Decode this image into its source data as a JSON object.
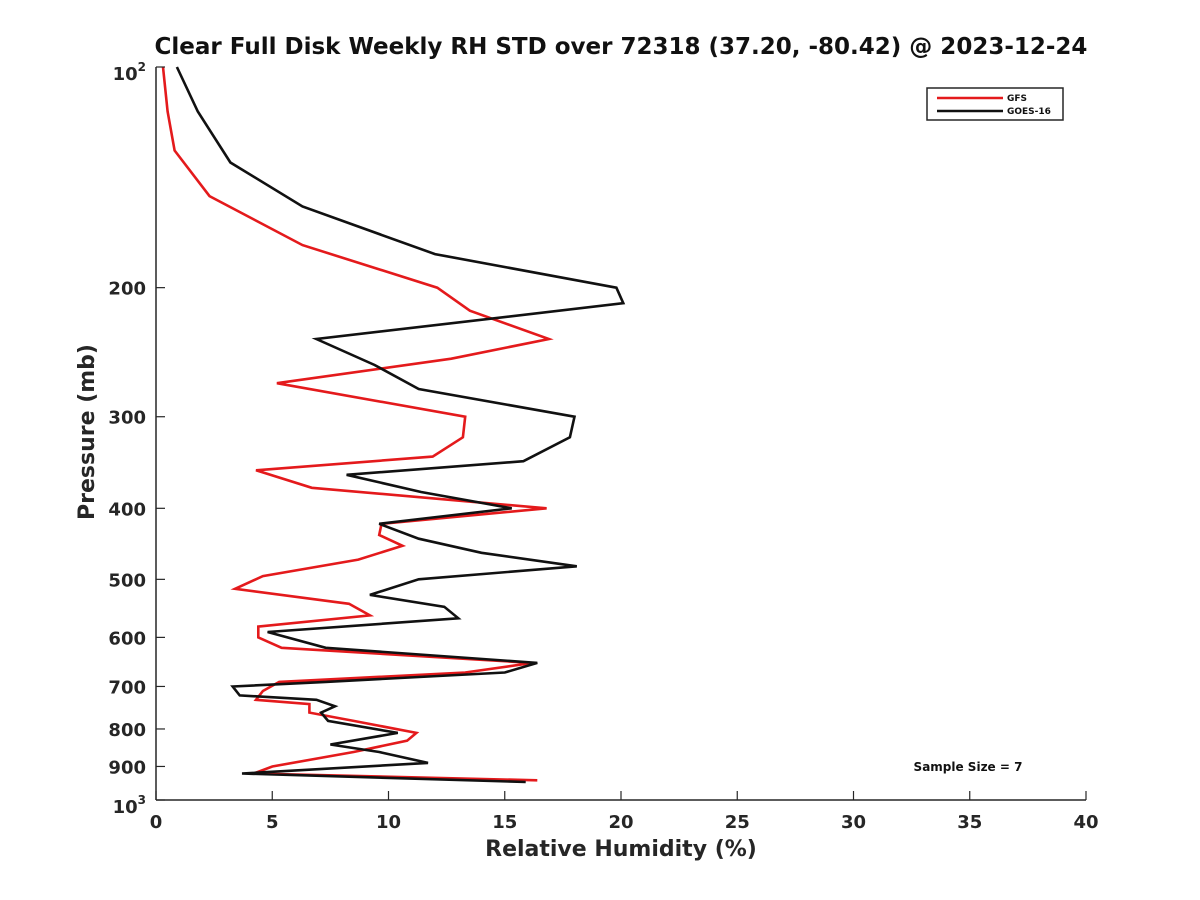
{
  "chart_data": {
    "type": "line",
    "title": "Clear Full Disk Weekly RH STD over 72318 (37.20, -80.42) @ 2023-12-24",
    "xlabel": "Relative Humidity (%)",
    "ylabel": "Pressure (mb)",
    "xlim": [
      0,
      40
    ],
    "ylim": [
      100,
      1000
    ],
    "yscale": "log",
    "yreversed": true,
    "grid": false,
    "legend_position": "top-right",
    "x_ticks": [
      "0",
      "5",
      "10",
      "15",
      "20",
      "25",
      "30",
      "35",
      "40"
    ],
    "y_ticks": [
      {
        "value": 100,
        "base": "10",
        "exp": "2"
      },
      {
        "value": 200,
        "label": "200"
      },
      {
        "value": 300,
        "label": "300"
      },
      {
        "value": 400,
        "label": "400"
      },
      {
        "value": 500,
        "label": "500"
      },
      {
        "value": 600,
        "label": "600"
      },
      {
        "value": 700,
        "label": "700"
      },
      {
        "value": 800,
        "label": "800"
      },
      {
        "value": 900,
        "label": "900"
      },
      {
        "value": 1000,
        "base": "10",
        "exp": "3"
      }
    ],
    "annotation": "Sample Size = 7",
    "series": [
      {
        "name": "GFS",
        "color": "#e41a1c",
        "points": [
          [
            0.3,
            100
          ],
          [
            0.5,
            115
          ],
          [
            0.8,
            130
          ],
          [
            2.3,
            150
          ],
          [
            6.3,
            175
          ],
          [
            12.1,
            200
          ],
          [
            13.5,
            215
          ],
          [
            16.9,
            235
          ],
          [
            12.7,
            250
          ],
          [
            5.2,
            270
          ],
          [
            13.3,
            300
          ],
          [
            13.2,
            320
          ],
          [
            11.9,
            340
          ],
          [
            4.3,
            355
          ],
          [
            6.7,
            375
          ],
          [
            16.8,
            400
          ],
          [
            9.7,
            420
          ],
          [
            9.6,
            435
          ],
          [
            10.6,
            450
          ],
          [
            8.7,
            470
          ],
          [
            4.6,
            495
          ],
          [
            3.4,
            515
          ],
          [
            8.3,
            540
          ],
          [
            9.2,
            560
          ],
          [
            4.4,
            580
          ],
          [
            4.4,
            600
          ],
          [
            5.4,
            620
          ],
          [
            16.2,
            650
          ],
          [
            13.3,
            670
          ],
          [
            5.3,
            690
          ],
          [
            4.6,
            710
          ],
          [
            4.3,
            730
          ],
          [
            6.6,
            740
          ],
          [
            6.6,
            760
          ],
          [
            8.5,
            780
          ],
          [
            11.2,
            810
          ],
          [
            10.8,
            830
          ],
          [
            8.5,
            860
          ],
          [
            5.0,
            900
          ],
          [
            4.2,
            920
          ],
          [
            16.4,
            940
          ]
        ]
      },
      {
        "name": "GOES-16",
        "color": "#111111",
        "points": [
          [
            0.9,
            100
          ],
          [
            1.8,
            115
          ],
          [
            3.2,
            135
          ],
          [
            6.3,
            155
          ],
          [
            12.0,
            180
          ],
          [
            19.8,
            200
          ],
          [
            20.1,
            210
          ],
          [
            6.9,
            235
          ],
          [
            9.4,
            255
          ],
          [
            11.3,
            275
          ],
          [
            18.0,
            300
          ],
          [
            17.8,
            320
          ],
          [
            15.8,
            345
          ],
          [
            8.2,
            360
          ],
          [
            11.4,
            380
          ],
          [
            15.3,
            400
          ],
          [
            9.6,
            420
          ],
          [
            11.3,
            440
          ],
          [
            14.0,
            460
          ],
          [
            18.1,
            480
          ],
          [
            11.3,
            500
          ],
          [
            9.2,
            525
          ],
          [
            12.4,
            545
          ],
          [
            13.0,
            565
          ],
          [
            4.8,
            590
          ],
          [
            7.3,
            620
          ],
          [
            16.4,
            650
          ],
          [
            15.0,
            670
          ],
          [
            7.3,
            690
          ],
          [
            3.3,
            700
          ],
          [
            3.6,
            720
          ],
          [
            6.9,
            730
          ],
          [
            7.7,
            745
          ],
          [
            7.1,
            760
          ],
          [
            7.4,
            780
          ],
          [
            10.4,
            810
          ],
          [
            7.5,
            840
          ],
          [
            9.6,
            860
          ],
          [
            11.7,
            890
          ],
          [
            3.7,
            920
          ],
          [
            15.9,
            945
          ]
        ]
      }
    ]
  }
}
